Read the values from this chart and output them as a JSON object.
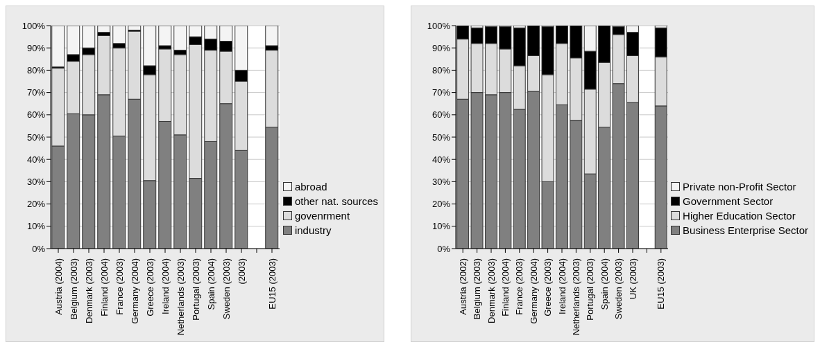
{
  "chart_data": [
    {
      "type": "bar",
      "stacked": true,
      "categories": [
        "Austria (2004)",
        "Belgium (2003)",
        "Denmark (2003)",
        "Finland (2004)",
        "France (2003)",
        "Germany (2004)",
        "Greece (2003)",
        "Ireland (2004)",
        "Netherlands (2003)",
        "Portugal (2003)",
        "Spain (2004)",
        "Sweden (2003)",
        "(2003)",
        null,
        "EU15 (2003)"
      ],
      "series": [
        {
          "name": "industry",
          "color": "#808080",
          "values": [
            46,
            60.5,
            60,
            69,
            50.5,
            67,
            30.5,
            57,
            51,
            31.5,
            48,
            65,
            44,
            null,
            54.5
          ]
        },
        {
          "name": "govenrment",
          "color": "#dcdcdc",
          "values": [
            35,
            23.5,
            27,
            26.5,
            39.5,
            30.5,
            47.5,
            32.5,
            36,
            60,
            41,
            23.5,
            31,
            null,
            34.5
          ]
        },
        {
          "name": "other nat. sources",
          "color": "#000000",
          "values": [
            0.5,
            3,
            3,
            1.5,
            2,
            0.5,
            4,
            1.5,
            2,
            3.5,
            5,
            4.5,
            5,
            null,
            2
          ]
        },
        {
          "name": "abroad",
          "color": "#f4f4f4",
          "values": [
            18.5,
            13,
            10,
            3,
            8,
            2,
            18,
            9,
            11,
            5,
            6,
            7,
            20,
            null,
            9
          ]
        }
      ],
      "ylim": [
        0,
        100
      ],
      "yticks": [
        {
          "value": 0,
          "label": "0%"
        },
        {
          "value": 10,
          "label": "10%"
        },
        {
          "value": 20,
          "label": "20%"
        },
        {
          "value": 30,
          "label": "30%"
        },
        {
          "value": 40,
          "label": "40%"
        },
        {
          "value": 50,
          "label": "50%"
        },
        {
          "value": 60,
          "label": "60%"
        },
        {
          "value": 70,
          "label": "70%"
        },
        {
          "value": 80,
          "label": "80%"
        },
        {
          "value": 90,
          "label": "90%"
        },
        {
          "value": 100,
          "label": "100%"
        }
      ],
      "grid": "y",
      "legend": "right"
    },
    {
      "type": "bar",
      "stacked": true,
      "categories": [
        "Austria (2002)",
        "Belgium (2003)",
        "Denmark (2003)",
        "Finland (2004)",
        "France (2003)",
        "Germany (2004)",
        "Greece (2003)",
        "Ireland (2004)",
        "Netherlands (2003)",
        "Portugal (2003)",
        "Spain (2004)",
        "Sweden (2003)",
        "UK (2003)",
        null,
        "EU15 (2003)"
      ],
      "series": [
        {
          "name": "Business Enterprise Sector",
          "color": "#808080",
          "values": [
            67,
            70,
            69,
            70,
            62.5,
            70.5,
            30,
            64.5,
            57.5,
            33.5,
            54.5,
            74,
            65.5,
            null,
            64
          ]
        },
        {
          "name": "Higher Education Sector",
          "color": "#dcdcdc",
          "values": [
            27,
            22,
            23,
            19.5,
            19.5,
            16,
            48,
            27.5,
            28,
            38,
            29,
            22,
            21,
            null,
            22
          ]
        },
        {
          "name": "Government Sector",
          "color": "#000000",
          "values": [
            6,
            7,
            7.5,
            10,
            17,
            13.5,
            21.5,
            8,
            14.5,
            17,
            16.5,
            3.5,
            10.5,
            null,
            13
          ]
        },
        {
          "name": "Private non-Profit Sector",
          "color": "#f4f4f4",
          "values": [
            0,
            1,
            0.5,
            0.5,
            1,
            0,
            0.5,
            0,
            0,
            11.5,
            0,
            0.5,
            3,
            null,
            1
          ]
        }
      ],
      "ylim": [
        0,
        100
      ],
      "yticks": [
        {
          "value": 0,
          "label": "0%"
        },
        {
          "value": 10,
          "label": "10%"
        },
        {
          "value": 20,
          "label": "20%"
        },
        {
          "value": 30,
          "label": "30%"
        },
        {
          "value": 40,
          "label": "40%"
        },
        {
          "value": 50,
          "label": "50%"
        },
        {
          "value": 60,
          "label": "60%"
        },
        {
          "value": 70,
          "label": "70%"
        },
        {
          "value": 80,
          "label": "80%"
        },
        {
          "value": 90,
          "label": "90%"
        },
        {
          "value": 100,
          "label": "100%"
        }
      ],
      "grid": "y",
      "legend": "right"
    }
  ]
}
